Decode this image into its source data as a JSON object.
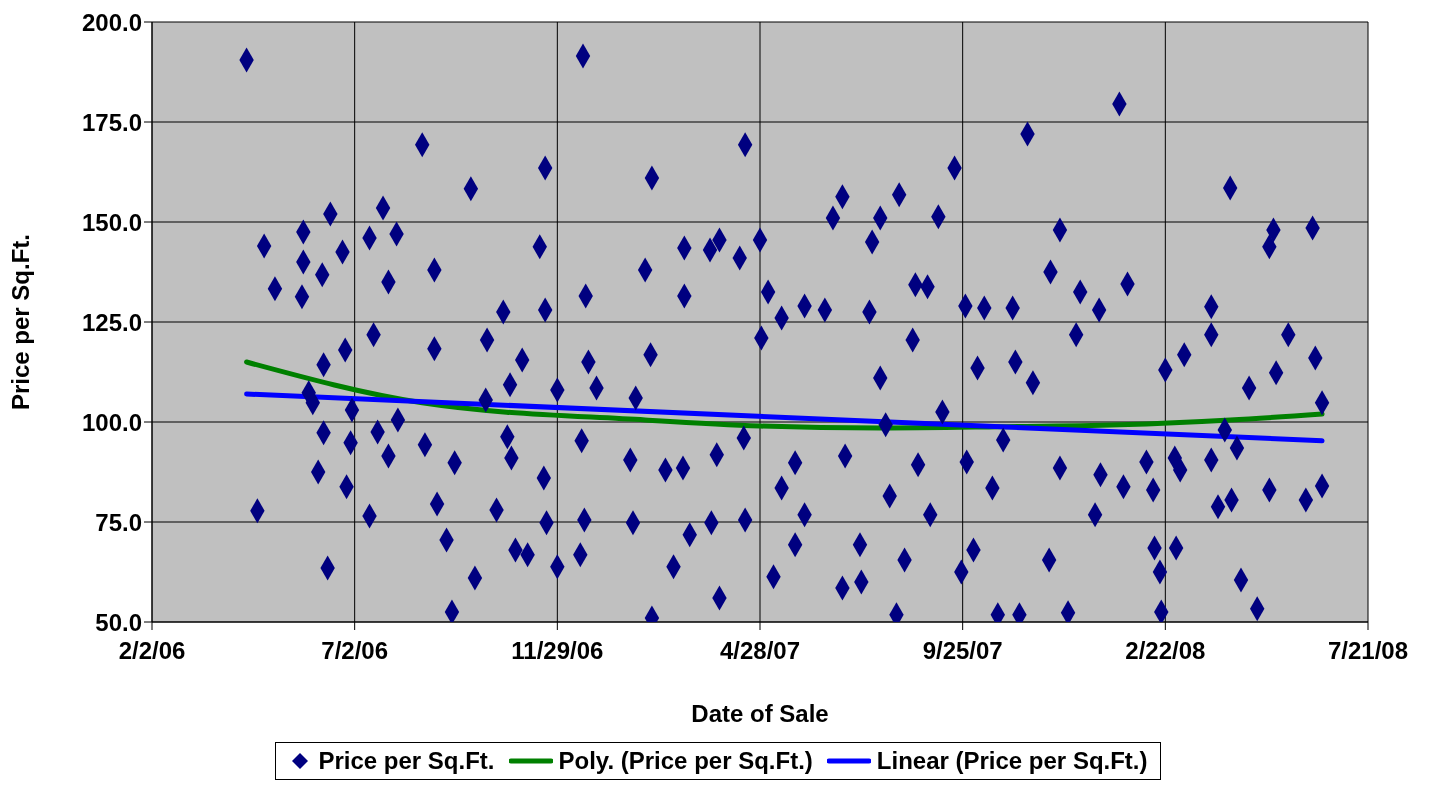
{
  "chart_data": {
    "type": "scatter",
    "xlabel": "Date of Sale",
    "ylabel": "Price per Sq.Ft.",
    "xlim": [
      "2006-02-02",
      "2008-07-21"
    ],
    "xticks": [
      {
        "value": "2006-02-02",
        "label": "2/2/06"
      },
      {
        "value": "2006-07-02",
        "label": "7/2/06"
      },
      {
        "value": "2006-11-29",
        "label": "11/29/06"
      },
      {
        "value": "2007-04-28",
        "label": "4/28/07"
      },
      {
        "value": "2007-09-25",
        "label": "9/25/07"
      },
      {
        "value": "2008-02-22",
        "label": "2/22/08"
      },
      {
        "value": "2008-07-21",
        "label": "7/21/08"
      }
    ],
    "ylim": [
      50,
      200
    ],
    "yticks": [
      {
        "value": 50,
        "label": "50.0"
      },
      {
        "value": 75,
        "label": "75.0"
      },
      {
        "value": 100,
        "label": "100.0"
      },
      {
        "value": 125,
        "label": "125.0"
      },
      {
        "value": 150,
        "label": "150.0"
      },
      {
        "value": 175,
        "label": "175.0"
      },
      {
        "value": 200,
        "label": "200.0"
      }
    ],
    "grid": true,
    "legend": "bottom",
    "line_style": "solid",
    "series": [
      {
        "name": "Price per Sq.Ft.",
        "marker": "diamond",
        "color": "#000080",
        "x": [
          "2006-04-13",
          "2006-04-21",
          "2006-04-26",
          "2006-05-04",
          "2006-05-25",
          "2006-05-25",
          "2006-05-24",
          "2006-05-29",
          "2006-06-05",
          "2006-06-08",
          "2006-06-09",
          "2006-06-09",
          "2006-06-12",
          "2006-06-14",
          "2006-06-23",
          "2006-06-25",
          "2006-06-26",
          "2006-06-29",
          "2006-07-13",
          "2006-07-13",
          "2006-07-16",
          "2006-07-23",
          "2006-07-27",
          "2006-08-02",
          "2006-07-27",
          "2006-07-19",
          "2006-08-21",
          "2006-08-30",
          "2006-08-30",
          "2006-09-01",
          "2006-09-08",
          "2006-09-12",
          "2006-09-14",
          "2006-09-26",
          "2006-09-29",
          "2006-10-08",
          "2006-10-15",
          "2006-10-20",
          "2006-10-23",
          "2006-10-26",
          "2006-10-29",
          "2006-11-03",
          "2006-11-07",
          "2006-11-16",
          "2006-11-20",
          "2006-11-20",
          "2006-11-19",
          "2006-11-21",
          "2006-11-29",
          "2006-11-29",
          "2006-12-18",
          "2006-12-20",
          "2006-12-22",
          "2006-12-19",
          "2006-12-28",
          "2006-12-17",
          "2006-12-16",
          "2007-01-24",
          "2007-01-22",
          "2007-01-26",
          "2007-02-02",
          "2007-02-07",
          "2007-02-07",
          "2007-02-06",
          "2007-02-17",
          "2007-02-23",
          "2007-03-02",
          "2007-03-03",
          "2007-03-03",
          "2007-03-07",
          "2007-03-22",
          "2007-03-23",
          "2007-03-27",
          "2007-03-29",
          "2007-03-29",
          "2007-04-13",
          "2007-04-16",
          "2007-04-17",
          "2007-04-17",
          "2007-04-28",
          "2007-04-29",
          "2007-05-04",
          "2007-05-08",
          "2007-05-14",
          "2007-05-14",
          "2007-05-24",
          "2007-05-24",
          "2007-05-31",
          "2007-05-31",
          "2007-06-15",
          "2007-06-21",
          "2007-06-28",
          "2007-06-28",
          "2007-06-30",
          "2007-07-11",
          "2007-07-12",
          "2007-07-18",
          "2007-07-20",
          "2007-07-26",
          "2007-07-26",
          "2007-07-30",
          "2007-08-02",
          "2007-08-07",
          "2007-08-09",
          "2007-08-13",
          "2007-08-19",
          "2007-08-21",
          "2007-08-23",
          "2007-08-30",
          "2007-09-01",
          "2007-09-07",
          "2007-09-10",
          "2007-09-19",
          "2007-09-24",
          "2007-09-27",
          "2007-09-28",
          "2007-10-03",
          "2007-10-06",
          "2007-10-11",
          "2007-10-17",
          "2007-10-21",
          "2007-10-25",
          "2007-11-01",
          "2007-11-03",
          "2007-11-06",
          "2007-11-12",
          "2007-11-16",
          "2007-11-28",
          "2007-11-29",
          "2007-12-06",
          "2007-12-06",
          "2007-12-12",
          "2007-12-18",
          "2007-12-21",
          "2008-01-01",
          "2008-01-04",
          "2008-01-05",
          "2008-01-19",
          "2008-01-22",
          "2008-01-25",
          "2008-02-08",
          "2008-02-13",
          "2008-02-14",
          "2008-02-18",
          "2008-02-19",
          "2008-02-22",
          "2008-02-29",
          "2008-03-01",
          "2008-03-04",
          "2008-03-07",
          "2008-03-27",
          "2008-03-27",
          "2008-03-27",
          "2008-04-01",
          "2008-04-06",
          "2008-04-10",
          "2008-04-11",
          "2008-04-15",
          "2008-04-18",
          "2008-04-24",
          "2008-04-30",
          "2008-05-09",
          "2008-05-09",
          "2008-05-12",
          "2008-05-14",
          "2008-05-23",
          "2008-06-05",
          "2008-06-10",
          "2008-06-12",
          "2008-06-17",
          "2008-06-17",
          "2006-06-01",
          "2006-06-30",
          "2006-08-03",
          "2006-08-23",
          "2006-10-07",
          "2006-10-25"
        ],
        "values": [
          190.5,
          77.8,
          144,
          133.3,
          147.5,
          140,
          131.3,
          107.3,
          87.5,
          136.8,
          114.3,
          97.3,
          63.5,
          152,
          142.5,
          118,
          83.8,
          94.8,
          76.5,
          146,
          121.8,
          153.5,
          135,
          147,
          91.5,
          97.5,
          169.3,
          138,
          118.3,
          79.5,
          70.5,
          52.5,
          89.8,
          158.3,
          61,
          120.5,
          78,
          127.5,
          96.3,
          91,
          68,
          115.5,
          66.8,
          143.8,
          163.5,
          128,
          86,
          74.8,
          63.8,
          108,
          191.5,
          131.5,
          115,
          75.5,
          108.5,
          95.3,
          66.8,
          74.8,
          90.5,
          106,
          138,
          161,
          51,
          116.8,
          88,
          63.8,
          88.5,
          131.5,
          143.5,
          71.8,
          143,
          74.8,
          91.8,
          145.5,
          56,
          141,
          96,
          169.3,
          75.5,
          145.5,
          121,
          132.5,
          61.3,
          126,
          83.5,
          89.8,
          69.3,
          129,
          76.8,
          128,
          151,
          156.3,
          58.5,
          91.5,
          69.3,
          60,
          127.5,
          145,
          151,
          111,
          99.3,
          81.5,
          51.8,
          156.8,
          65.5,
          120.5,
          134.3,
          89.3,
          133.8,
          76.8,
          151.3,
          102.5,
          163.5,
          62.5,
          129,
          90,
          68,
          113.5,
          128.5,
          83.5,
          51.8,
          95.5,
          128.5,
          115,
          51.8,
          172,
          109.8,
          65.5,
          137.5,
          148,
          88.5,
          52.3,
          121.8,
          132.5,
          76.8,
          128,
          86.8,
          179.5,
          83.8,
          134.5,
          90,
          83,
          68.5,
          62.5,
          52.5,
          113,
          91,
          68.5,
          88,
          116.8,
          121.8,
          128.8,
          90.5,
          78.8,
          98,
          158.5,
          80.5,
          93.5,
          60.5,
          108.5,
          53.3,
          143.8,
          83,
          148,
          112.3,
          121.8,
          80.5,
          148.5,
          116,
          84,
          104.8,
          104.8,
          103,
          100.5,
          94.3,
          105.5,
          109.3
        ]
      },
      {
        "name": "Poly. (Price per Sq.Ft.)",
        "type": "line",
        "marker": "none",
        "color": "#008000",
        "x": [
          "2006-04-13",
          "2006-08-21",
          "2007-02-02",
          "2007-04-28",
          "2007-07-26",
          "2007-10-21",
          "2008-01-19",
          "2008-04-10",
          "2008-06-17"
        ],
        "values": [
          115,
          104.8,
          100.5,
          99,
          98.5,
          98.8,
          99.3,
          100.5,
          102
        ]
      },
      {
        "name": "Linear (Price per Sq.Ft.)",
        "type": "line",
        "marker": "none",
        "color": "#0000ff",
        "x": [
          "2006-04-13",
          "2008-06-17"
        ],
        "values": [
          107,
          95.3
        ]
      }
    ]
  }
}
